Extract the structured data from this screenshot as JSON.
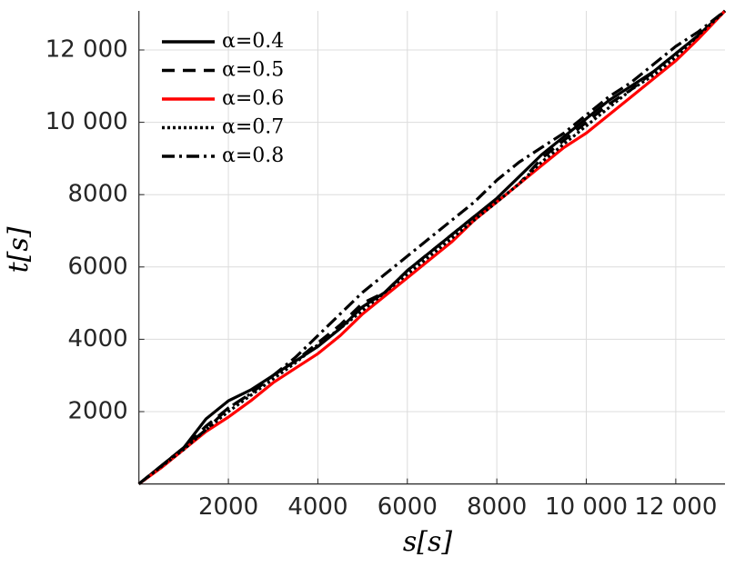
{
  "chart_data": {
    "type": "line",
    "xlabel": "s[s]",
    "ylabel": "t[s]",
    "x": [
      0,
      500,
      1000,
      1500,
      2000,
      2500,
      3000,
      3500,
      4000,
      4500,
      5000,
      5500,
      6000,
      6500,
      7000,
      7500,
      8000,
      8500,
      9000,
      9500,
      10000,
      10500,
      11000,
      11500,
      12000,
      12500,
      13100
    ],
    "series": [
      {
        "name": "α=0.4",
        "color": "#000000",
        "linestyle": "solid",
        "values": [
          0,
          500,
          1000,
          1800,
          2300,
          2600,
          3000,
          3400,
          3800,
          4300,
          4900,
          5300,
          5900,
          6400,
          6900,
          7400,
          7900,
          8500,
          9100,
          9600,
          10100,
          10600,
          11000,
          11400,
          11900,
          12400,
          13080
        ]
      },
      {
        "name": "α=0.5",
        "color": "#000000",
        "linestyle": "dashed",
        "values": [
          0,
          500,
          1000,
          1600,
          2100,
          2500,
          3000,
          3400,
          3900,
          4400,
          5000,
          5300,
          5900,
          6400,
          6900,
          7400,
          7800,
          8300,
          9000,
          9500,
          10000,
          10500,
          10900,
          11400,
          11900,
          12400,
          13080
        ]
      },
      {
        "name": "α=0.6",
        "color": "#ff0000",
        "linestyle": "solid",
        "values": [
          0,
          450,
          950,
          1450,
          1850,
          2300,
          2800,
          3200,
          3600,
          4100,
          4700,
          5200,
          5700,
          6200,
          6700,
          7300,
          7800,
          8300,
          8800,
          9300,
          9700,
          10200,
          10700,
          11200,
          11700,
          12300,
          13080
        ]
      },
      {
        "name": "α=0.7",
        "color": "#000000",
        "linestyle": "dotted",
        "values": [
          0,
          480,
          950,
          1500,
          2000,
          2450,
          2900,
          3350,
          3850,
          4300,
          4800,
          5300,
          5800,
          6300,
          6800,
          7300,
          7800,
          8300,
          8900,
          9400,
          9900,
          10400,
          10900,
          11300,
          11800,
          12400,
          13080
        ]
      },
      {
        "name": "α=0.8",
        "color": "#000000",
        "linestyle": "dashdot",
        "values": [
          0,
          500,
          1000,
          1500,
          2100,
          2500,
          3000,
          3500,
          4100,
          4700,
          5300,
          5800,
          6300,
          6800,
          7300,
          7800,
          8400,
          8900,
          9300,
          9700,
          10200,
          10700,
          11100,
          11600,
          12100,
          12500,
          13080
        ]
      }
    ],
    "xlim": [
      0,
      13100
    ],
    "ylim": [
      0,
      13080
    ],
    "xticks": [
      2000,
      4000,
      6000,
      8000,
      {
        "value": 10000,
        "label": "10 000"
      },
      {
        "value": 12000,
        "label": "12 000"
      }
    ],
    "yticks": [
      2000,
      4000,
      6000,
      8000,
      {
        "value": 10000,
        "label": "10 000"
      },
      {
        "value": 12000,
        "label": "12 000"
      }
    ],
    "grid": true,
    "legend": "upper left"
  }
}
